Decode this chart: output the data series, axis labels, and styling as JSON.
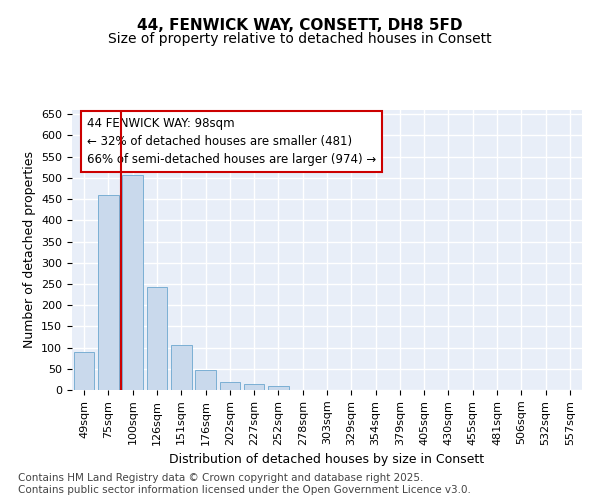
{
  "title": "44, FENWICK WAY, CONSETT, DH8 5FD",
  "subtitle": "Size of property relative to detached houses in Consett",
  "xlabel": "Distribution of detached houses by size in Consett",
  "ylabel": "Number of detached properties",
  "categories": [
    "49sqm",
    "75sqm",
    "100sqm",
    "126sqm",
    "151sqm",
    "176sqm",
    "202sqm",
    "227sqm",
    "252sqm",
    "278sqm",
    "303sqm",
    "329sqm",
    "354sqm",
    "379sqm",
    "405sqm",
    "430sqm",
    "455sqm",
    "481sqm",
    "506sqm",
    "532sqm",
    "557sqm"
  ],
  "values": [
    90,
    460,
    507,
    242,
    105,
    48,
    20,
    13,
    10,
    0,
    0,
    0,
    0,
    0,
    0,
    0,
    0,
    0,
    0,
    0,
    0
  ],
  "bar_color": "#c9d9ec",
  "bar_edge_color": "#7bafd4",
  "vline_color": "#cc0000",
  "annotation_text_line1": "44 FENWICK WAY: 98sqm",
  "annotation_text_line2": "← 32% of detached houses are smaller (481)",
  "annotation_text_line3": "66% of semi-detached houses are larger (974) →",
  "annotation_box_color": "#ffffff",
  "annotation_box_edge_color": "#cc0000",
  "ylim": [
    0,
    660
  ],
  "yticks": [
    0,
    50,
    100,
    150,
    200,
    250,
    300,
    350,
    400,
    450,
    500,
    550,
    600,
    650
  ],
  "footer": "Contains HM Land Registry data © Crown copyright and database right 2025.\nContains public sector information licensed under the Open Government Licence v3.0.",
  "bg_color": "#e8eef8",
  "fig_bg_color": "#ffffff",
  "title_fontsize": 11,
  "subtitle_fontsize": 10,
  "label_fontsize": 9,
  "tick_fontsize": 8,
  "annotation_fontsize": 8.5,
  "footer_fontsize": 7.5
}
